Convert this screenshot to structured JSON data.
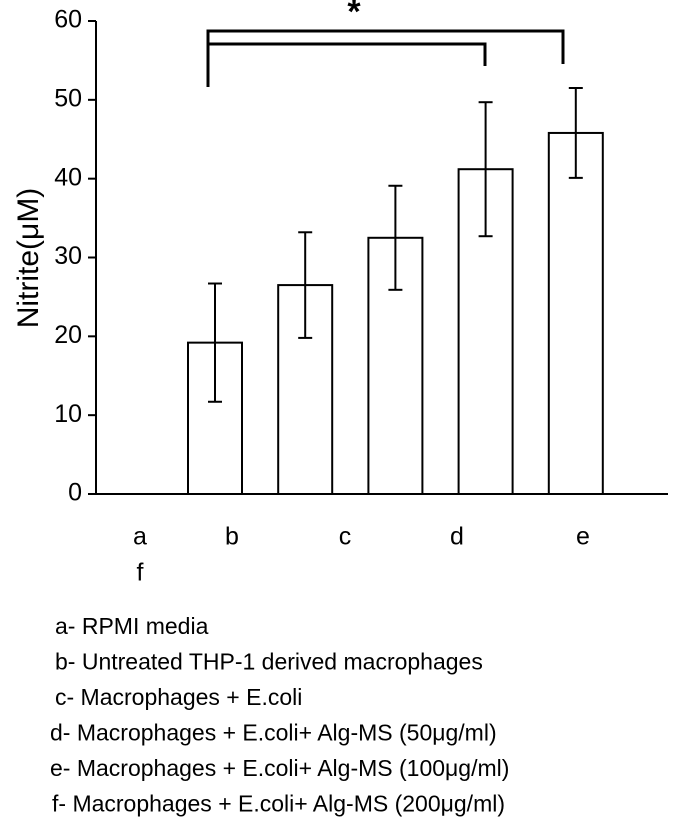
{
  "chart_data": {
    "type": "bar",
    "y_label": "Nitrite(μM)",
    "annotation": "*",
    "categories": [
      "a",
      "b",
      "c",
      "d",
      "e",
      "f"
    ],
    "values": [
      null,
      19.2,
      26.5,
      32.5,
      41.2,
      45.8
    ],
    "errors": [
      null,
      7.5,
      6.7,
      6.6,
      8.5,
      5.7
    ],
    "color": "#ffffff",
    "ylim": [
      0,
      60
    ],
    "yticks": [
      0,
      10,
      20,
      30,
      40,
      50,
      60
    ],
    "legend_notes": [
      "a- RPMI media",
      "b- Untreated THP-1 derived macrophages",
      "c- Macrophages + E.coli",
      "d- Macrophages + E.coli+ Alg-MS (50μg/ml)",
      "e- Macrophages + E.coli+ Alg-MS (100μg/ml)",
      "f- Macrophages + E.coli+ Alg-MS (200μg/ml)"
    ]
  }
}
